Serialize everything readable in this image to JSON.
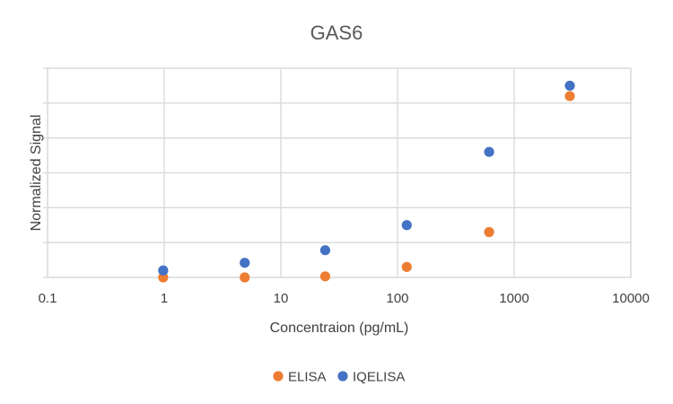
{
  "chart_data": {
    "type": "scatter",
    "title": "GAS6",
    "xlabel": "Concentraion (pg/mL)",
    "ylabel": "Normalized Signal",
    "xscale": "log",
    "xlim": [
      0.1,
      10000
    ],
    "ylim": [
      0,
      6
    ],
    "x_tick_labels": [
      "0.1",
      "1",
      "10",
      "100",
      "1000",
      "10000"
    ],
    "x_ticks": [
      0.1,
      1,
      10,
      100,
      1000,
      10000
    ],
    "y_ticks": [
      0,
      1,
      2,
      3,
      4,
      5,
      6
    ],
    "grid": true,
    "legend_position": "bottom",
    "series": [
      {
        "name": "ELISA",
        "color": "#ed7d31",
        "x": [
          0.98,
          4.9,
          24,
          120,
          610,
          3000
        ],
        "y": [
          0.0,
          0.0,
          0.03,
          0.3,
          1.3,
          5.2
        ]
      },
      {
        "name": "IQELISA",
        "color": "#4472c4",
        "x": [
          0.98,
          4.9,
          24,
          120,
          610,
          3000
        ],
        "y": [
          0.2,
          0.42,
          0.78,
          1.5,
          3.6,
          5.5
        ]
      }
    ]
  }
}
